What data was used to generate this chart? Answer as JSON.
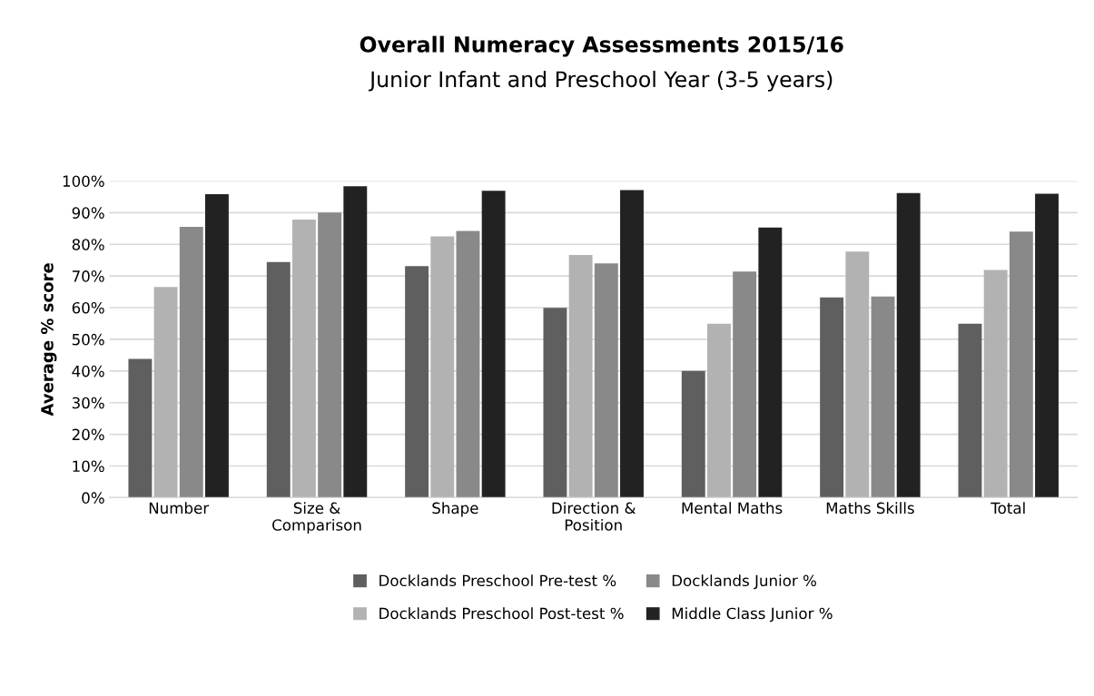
{
  "chart_data": {
    "type": "bar",
    "title": "Overall Numeracy Assessments 2015/16",
    "subtitle": "Junior Infant and Preschool Year (3-5 years)",
    "ylabel": "Average % score",
    "categories": [
      "Number",
      "Size &\nComparison",
      "Shape",
      "Direction &\nPosition",
      "Mental Maths",
      "Maths Skills",
      "Total"
    ],
    "series": [
      {
        "name": "Docklands Preschool Pre-test %",
        "color": "#5f5f5f",
        "values": [
          43.8,
          74.4,
          73.1,
          59.9,
          40,
          63.2,
          54.9
        ]
      },
      {
        "name": "Docklands Preschool Post-test %",
        "color": "#b2b2b2",
        "values": [
          66.5,
          87.8,
          82.5,
          76.6,
          54.9,
          77.7,
          71.9
        ]
      },
      {
        "name": "Docklands Junior %",
        "color": "#898989",
        "values": [
          85.5,
          90.0,
          84.2,
          74.0,
          71.4,
          63.5,
          84.0
        ]
      },
      {
        "name": "Middle Class Junior %",
        "color": "#222222",
        "values": [
          95.8,
          98.3,
          96.9,
          97.1,
          85.3,
          96.2,
          96.0
        ]
      }
    ],
    "ylim": [
      0,
      100
    ],
    "yticks": [
      {
        "value": 0,
        "label": "0%"
      },
      {
        "value": 10,
        "label": "10%"
      },
      {
        "value": 20,
        "label": "20%"
      },
      {
        "value": 30,
        "label": "30%"
      },
      {
        "value": 40,
        "label": "40%"
      },
      {
        "value": 50,
        "label": "50%"
      },
      {
        "value": 60,
        "label": "60%"
      },
      {
        "value": 70,
        "label": "70%"
      },
      {
        "value": 80,
        "label": "80%"
      },
      {
        "value": 90,
        "label": "90%"
      },
      {
        "value": 100,
        "label": "100%"
      }
    ],
    "grid": "y",
    "legend": "bottom"
  }
}
